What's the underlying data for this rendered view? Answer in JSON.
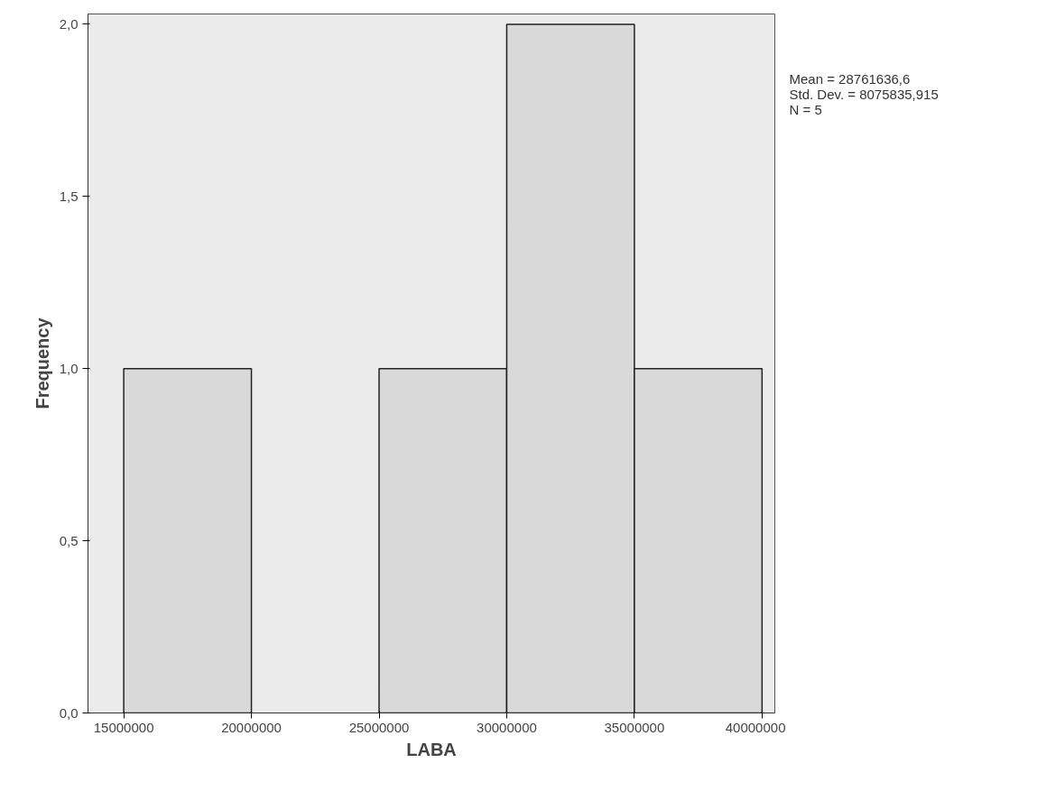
{
  "chart_data": {
    "type": "histogram",
    "xlabel": "LABA",
    "ylabel": "Frequency",
    "bins": [
      15000000,
      20000000,
      25000000,
      30000000,
      35000000,
      40000000
    ],
    "values": [
      1,
      0,
      1,
      2,
      1
    ],
    "color": "#d9d9d9",
    "xlim": [
      13600000,
      40500000
    ],
    "xticks": [
      15000000,
      20000000,
      25000000,
      30000000,
      35000000,
      40000000
    ],
    "ylim": [
      0,
      2.03
    ],
    "yticks": [
      {
        "value": 0,
        "label": "0,0"
      },
      {
        "value": 0.5,
        "label": "0,5"
      },
      {
        "value": 1,
        "label": "1,0"
      },
      {
        "value": 1.5,
        "label": "1,5"
      },
      {
        "value": 2,
        "label": "2,0"
      }
    ],
    "annotations": [
      "Mean = 28761636,6",
      "Std. Dev. = 8075835,915",
      "N = 5"
    ],
    "grid": false
  }
}
